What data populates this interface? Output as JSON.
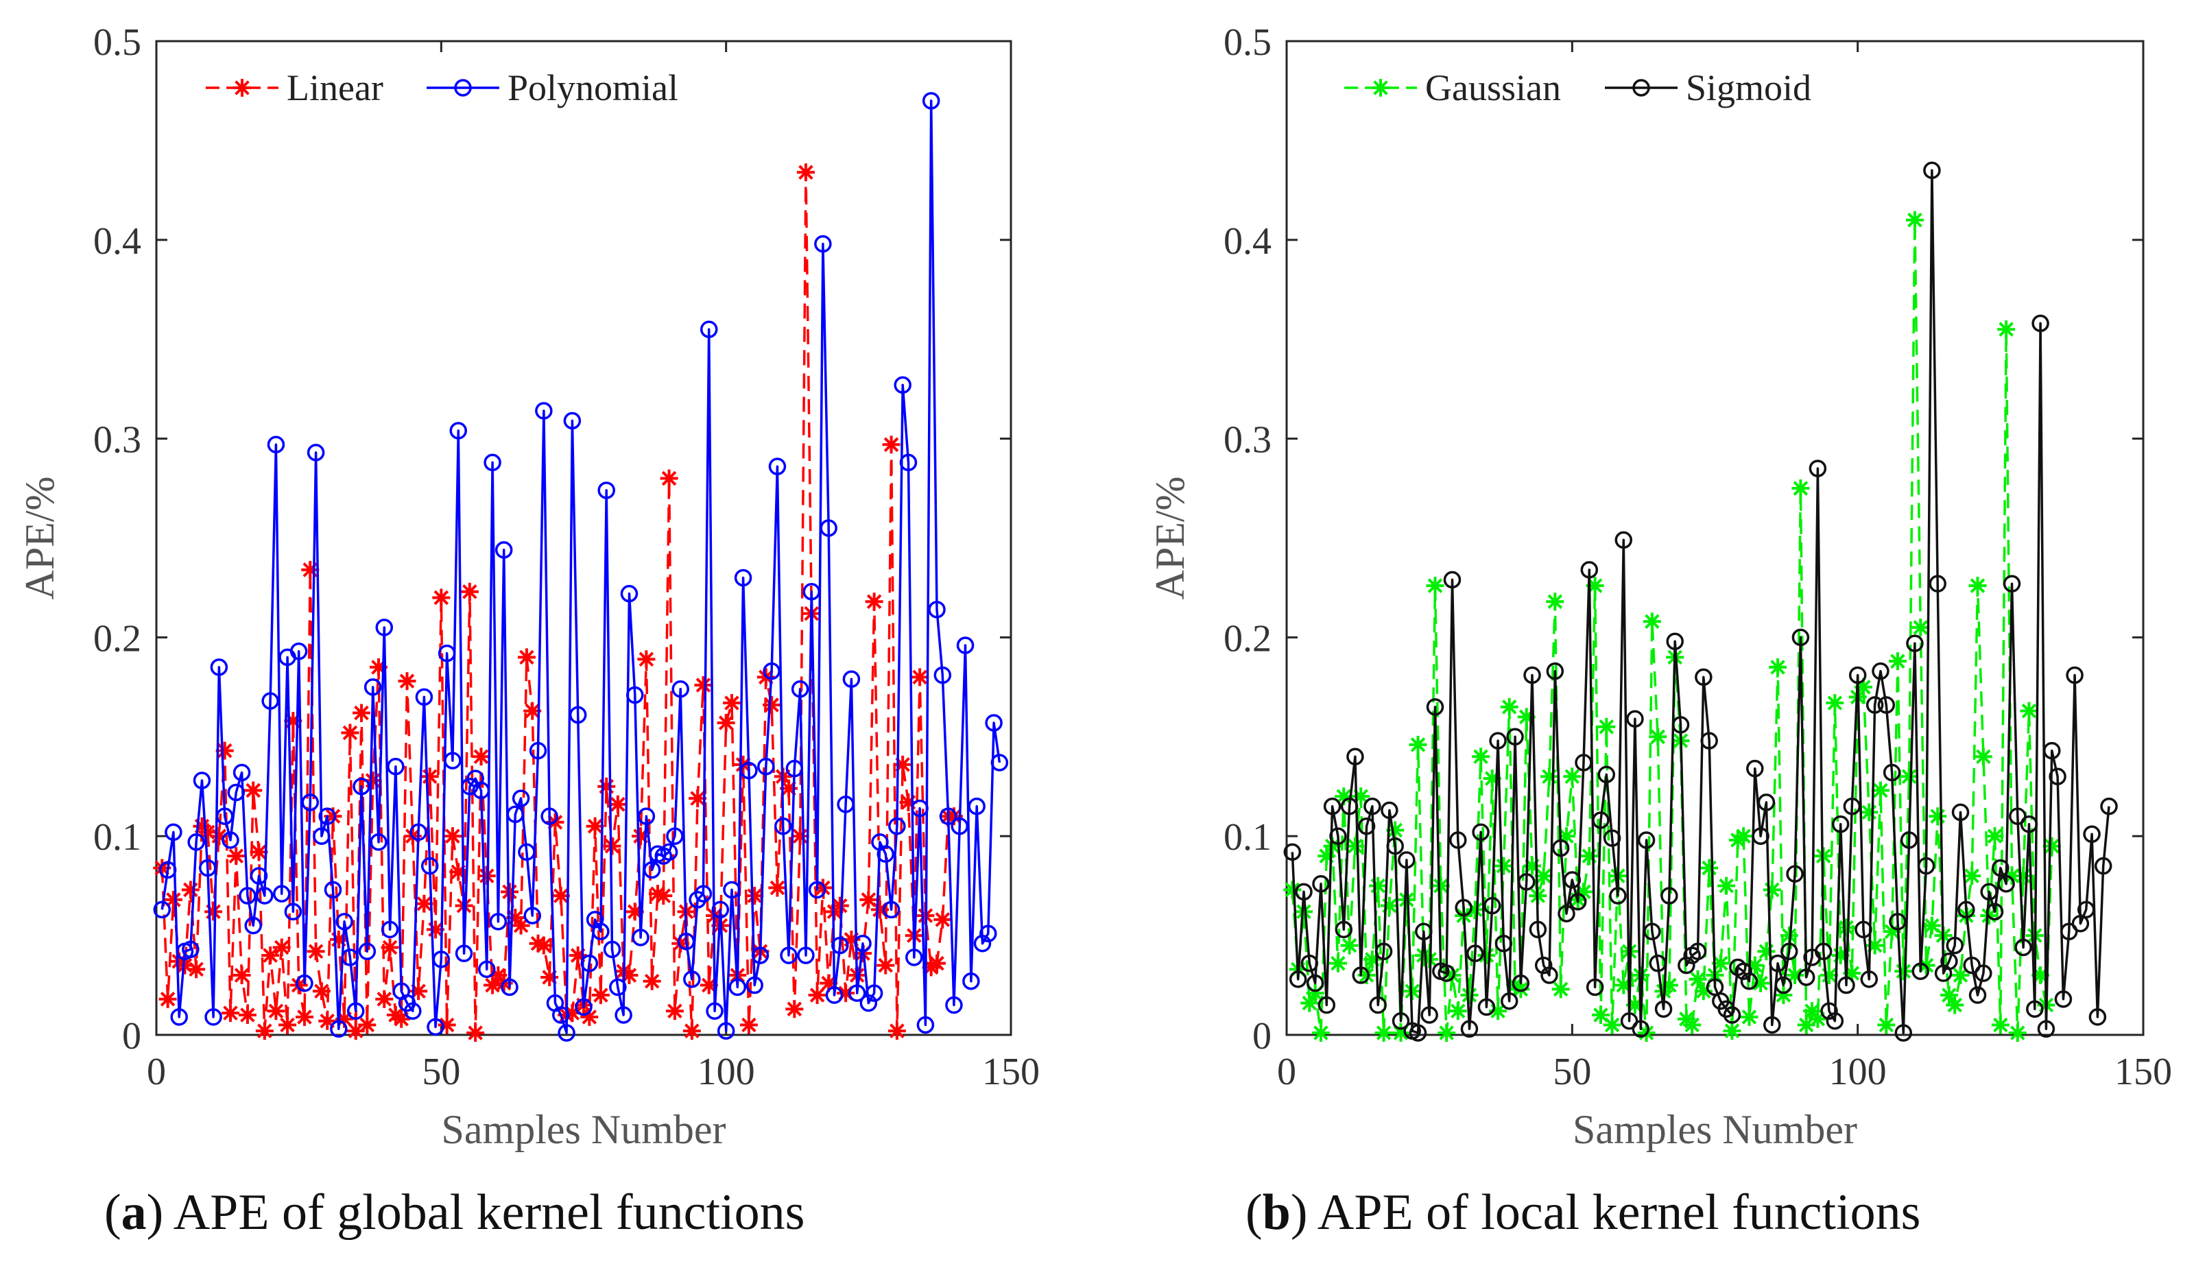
{
  "colors": {
    "linear": "#ff0000",
    "polynomial": "#0000ff",
    "gaussian": "#00ee00",
    "sigmoid": "#111111"
  },
  "chart_data": [
    {
      "type": "line",
      "id": "a",
      "caption_letter": "a",
      "caption_text": "APE of global kernel functions",
      "xlabel": "Samples Number",
      "ylabel": "APE/%",
      "xlim": [
        0,
        150
      ],
      "ylim": [
        0,
        0.5
      ],
      "xticks": [
        0,
        50,
        100,
        150
      ],
      "yticks": [
        0,
        0.1,
        0.2,
        0.3,
        0.4,
        0.5
      ],
      "xtick_labels": [
        "0",
        "50",
        "100",
        "150"
      ],
      "ytick_labels": [
        "0",
        "0.1",
        "0.2",
        "0.3",
        "0.4",
        "0.5"
      ],
      "legend_position": "top-left",
      "series": [
        {
          "name": "Linear",
          "color_key": "linear",
          "marker": "asterisk",
          "dash": "dashed",
          "values": [
            0.084,
            0.018,
            0.068,
            0.037,
            0.035,
            0.073,
            0.033,
            0.105,
            0.102,
            0.062,
            0.1,
            0.143,
            0.011,
            0.09,
            0.03,
            0.01,
            0.123,
            0.092,
            0.002,
            0.04,
            0.012,
            0.044,
            0.005,
            0.158,
            0.025,
            0.009,
            0.234,
            0.042,
            0.022,
            0.007,
            0.11,
            0.048,
            0.008,
            0.152,
            0.002,
            0.162,
            0.005,
            0.128,
            0.185,
            0.018,
            0.044,
            0.01,
            0.008,
            0.178,
            0.1,
            0.022,
            0.066,
            0.13,
            0.053,
            0.22,
            0.005,
            0.1,
            0.082,
            0.065,
            0.223,
            0.001,
            0.14,
            0.08,
            0.025,
            0.03,
            0.026,
            0.072,
            0.059,
            0.055,
            0.19,
            0.163,
            0.046,
            0.045,
            0.029,
            0.107,
            0.07,
            0.01,
            0.011,
            0.04,
            0.015,
            0.009,
            0.105,
            0.02,
            0.125,
            0.095,
            0.116,
            0.032,
            0.03,
            0.062,
            0.1,
            0.189,
            0.027,
            0.071,
            0.07,
            0.28,
            0.012,
            0.046,
            0.062,
            0.002,
            0.119,
            0.176,
            0.025,
            0.06,
            0.055,
            0.157,
            0.167,
            0.03,
            0.136,
            0.005,
            0.07,
            0.042,
            0.18,
            0.166,
            0.074,
            0.13,
            0.124,
            0.013,
            0.1,
            0.434,
            0.212,
            0.02,
            0.074,
            0.026,
            0.062,
            0.065,
            0.021,
            0.048,
            0.03,
            0.041,
            0.068,
            0.218,
            0.063,
            0.035,
            0.297,
            0.002,
            0.136,
            0.117,
            0.05,
            0.18,
            0.06,
            0.034,
            0.036,
            0.058,
            0.11,
            0.11
          ]
        },
        {
          "name": "Polynomial",
          "color_key": "polynomial",
          "marker": "circle",
          "dash": "solid",
          "values": [
            0.063,
            0.083,
            0.102,
            0.009,
            0.042,
            0.043,
            0.097,
            0.128,
            0.084,
            0.009,
            0.185,
            0.11,
            0.098,
            0.122,
            0.132,
            0.07,
            0.055,
            0.08,
            0.07,
            0.168,
            0.297,
            0.071,
            0.19,
            0.062,
            0.193,
            0.026,
            0.117,
            0.293,
            0.1,
            0.11,
            0.073,
            0.003,
            0.057,
            0.039,
            0.012,
            0.125,
            0.042,
            0.175,
            0.097,
            0.205,
            0.053,
            0.135,
            0.022,
            0.016,
            0.012,
            0.102,
            0.17,
            0.085,
            0.004,
            0.038,
            0.192,
            0.138,
            0.304,
            0.041,
            0.125,
            0.129,
            0.123,
            0.033,
            0.288,
            0.057,
            0.244,
            0.024,
            0.111,
            0.119,
            0.092,
            0.06,
            0.143,
            0.314,
            0.11,
            0.016,
            0.01,
            0.001,
            0.309,
            0.161,
            0.014,
            0.036,
            0.058,
            0.052,
            0.274,
            0.043,
            0.024,
            0.01,
            0.222,
            0.171,
            0.049,
            0.11,
            0.083,
            0.091,
            0.09,
            0.092,
            0.1,
            0.174,
            0.047,
            0.028,
            0.068,
            0.071,
            0.355,
            0.012,
            0.063,
            0.002,
            0.073,
            0.024,
            0.23,
            0.133,
            0.025,
            0.04,
            0.135,
            0.183,
            0.286,
            0.105,
            0.04,
            0.134,
            0.174,
            0.04,
            0.223,
            0.073,
            0.398,
            0.255,
            0.02,
            0.045,
            0.116,
            0.179,
            0.021,
            0.046,
            0.016,
            0.021,
            0.097,
            0.091,
            0.063,
            0.105,
            0.327,
            0.288,
            0.039,
            0.114,
            0.005,
            0.47,
            0.214,
            0.181,
            0.11,
            0.015,
            0.105,
            0.196,
            0.027,
            0.115,
            0.046,
            0.051,
            0.157,
            0.137
          ]
        }
      ]
    },
    {
      "type": "line",
      "id": "b",
      "caption_letter": "b",
      "caption_text": "APE of local kernel functions",
      "xlabel": "Samples Number",
      "ylabel": "APE/%",
      "xlim": [
        0,
        150
      ],
      "ylim": [
        0,
        0.5
      ],
      "xticks": [
        0,
        50,
        100,
        150
      ],
      "yticks": [
        0,
        0.1,
        0.2,
        0.3,
        0.4,
        0.5
      ],
      "xtick_labels": [
        "0",
        "50",
        "100",
        "150"
      ],
      "ytick_labels": [
        "0",
        "0.1",
        "0.2",
        "0.3",
        "0.4",
        "0.5"
      ],
      "legend_position": "top-left",
      "series": [
        {
          "name": "Gaussian",
          "color_key": "gaussian",
          "marker": "asterisk",
          "dash": "dashed",
          "values": [
            0.073,
            0.033,
            0.062,
            0.016,
            0.021,
            0.001,
            0.09,
            0.095,
            0.036,
            0.12,
            0.045,
            0.095,
            0.12,
            0.03,
            0.038,
            0.075,
            0.001,
            0.065,
            0.103,
            0.001,
            0.068,
            0.022,
            0.146,
            0.04,
            0.038,
            0.226,
            0.075,
            0.001,
            0.03,
            0.012,
            0.06,
            0.02,
            0.063,
            0.14,
            0.04,
            0.129,
            0.012,
            0.085,
            0.165,
            0.025,
            0.023,
            0.16,
            0.085,
            0.07,
            0.08,
            0.13,
            0.218,
            0.023,
            0.1,
            0.13,
            0.068,
            0.072,
            0.09,
            0.226,
            0.01,
            0.155,
            0.005,
            0.08,
            0.025,
            0.042,
            0.015,
            0.03,
            0.001,
            0.208,
            0.15,
            0.022,
            0.025,
            0.19,
            0.148,
            0.008,
            0.005,
            0.028,
            0.022,
            0.084,
            0.03,
            0.036,
            0.075,
            0.002,
            0.098,
            0.1,
            0.009,
            0.035,
            0.026,
            0.042,
            0.073,
            0.185,
            0.02,
            0.05,
            0.03,
            0.275,
            0.005,
            0.012,
            0.008,
            0.09,
            0.03,
            0.167,
            0.04,
            0.054,
            0.031,
            0.17,
            0.175,
            0.112,
            0.045,
            0.123,
            0.005,
            0.052,
            0.188,
            0.032,
            0.13,
            0.41,
            0.205,
            0.035,
            0.055,
            0.11,
            0.05,
            0.02,
            0.015,
            0.03,
            0.06,
            0.08,
            0.226,
            0.14,
            0.06,
            0.1,
            0.005,
            0.355,
            0.08,
            0.001,
            0.08,
            0.163,
            0.05,
            0.03,
            0.015,
            0.095
          ]
        },
        {
          "name": "Sigmoid",
          "color_key": "sigmoid",
          "marker": "circle",
          "dash": "solid",
          "values": [
            0.092,
            0.028,
            0.072,
            0.036,
            0.026,
            0.076,
            0.015,
            0.115,
            0.1,
            0.053,
            0.115,
            0.14,
            0.03,
            0.105,
            0.115,
            0.015,
            0.042,
            0.113,
            0.095,
            0.007,
            0.088,
            0.002,
            0.001,
            0.052,
            0.01,
            0.165,
            0.032,
            0.031,
            0.229,
            0.098,
            0.064,
            0.003,
            0.041,
            0.102,
            0.014,
            0.065,
            0.148,
            0.046,
            0.017,
            0.15,
            0.026,
            0.077,
            0.181,
            0.053,
            0.035,
            0.03,
            0.183,
            0.094,
            0.061,
            0.078,
            0.067,
            0.137,
            0.234,
            0.024,
            0.108,
            0.131,
            0.099,
            0.07,
            0.249,
            0.007,
            0.159,
            0.003,
            0.098,
            0.052,
            0.036,
            0.013,
            0.07,
            0.198,
            0.156,
            0.035,
            0.04,
            0.042,
            0.18,
            0.148,
            0.024,
            0.017,
            0.013,
            0.01,
            0.034,
            0.032,
            0.027,
            0.134,
            0.1,
            0.117,
            0.005,
            0.036,
            0.025,
            0.042,
            0.081,
            0.2,
            0.029,
            0.039,
            0.285,
            0.042,
            0.012,
            0.007,
            0.106,
            0.025,
            0.115,
            0.181,
            0.053,
            0.028,
            0.166,
            0.183,
            0.166,
            0.132,
            0.057,
            0.001,
            0.098,
            0.197,
            0.032,
            0.085,
            0.435,
            0.227,
            0.031,
            0.037,
            0.045,
            0.112,
            0.063,
            0.035,
            0.02,
            0.031,
            0.072,
            0.062,
            0.084,
            0.076,
            0.227,
            0.11,
            0.044,
            0.106,
            0.013,
            0.358,
            0.003,
            0.143,
            0.13,
            0.018,
            0.052,
            0.181,
            0.056,
            0.063,
            0.101,
            0.009,
            0.085,
            0.115
          ]
        }
      ]
    }
  ]
}
